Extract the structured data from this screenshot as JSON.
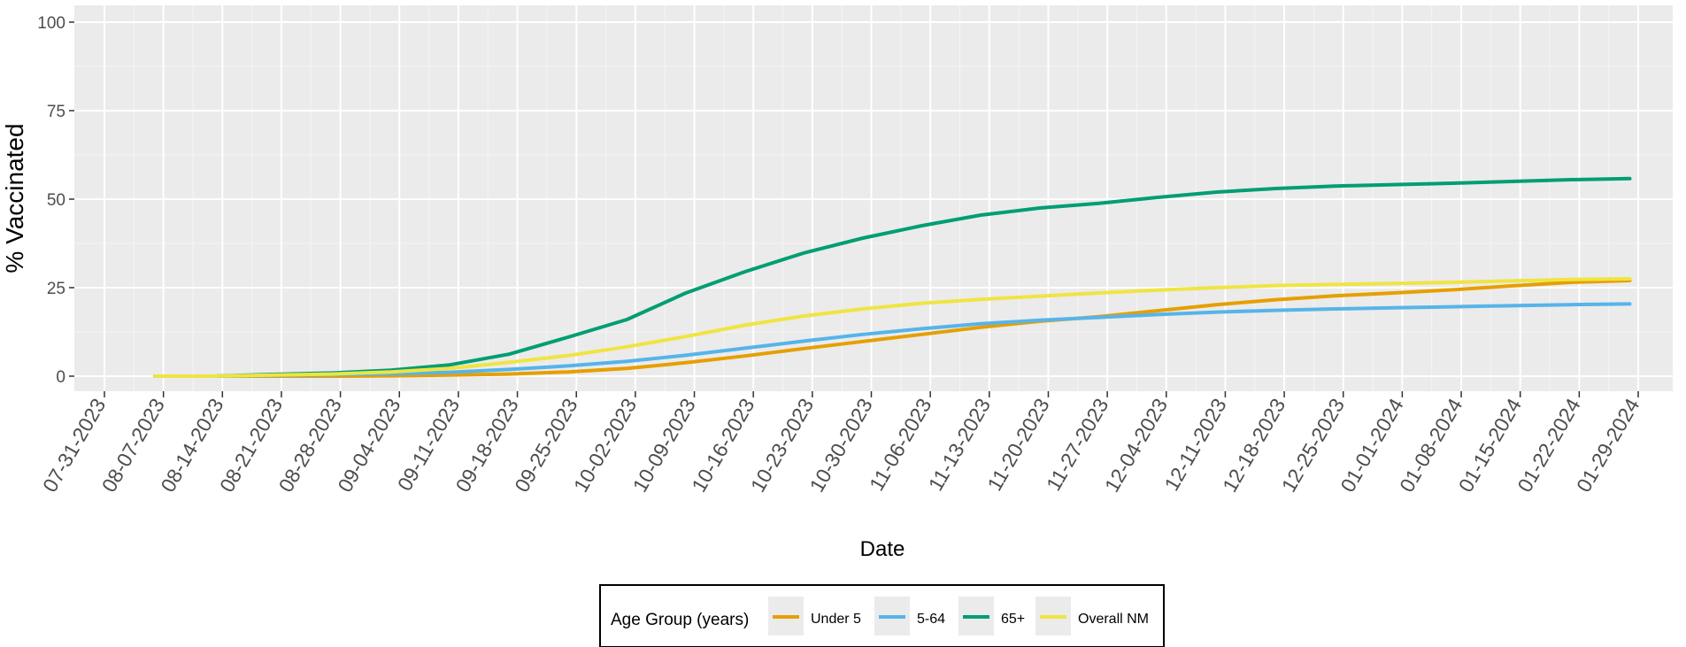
{
  "chart_data": {
    "type": "line",
    "title": "",
    "xlabel": "Date",
    "ylabel": "% Vaccinated",
    "ylim": [
      0,
      100
    ],
    "yticks": [
      0,
      25,
      50,
      75,
      100
    ],
    "xlim": [
      "2023-07-31",
      "2024-02-01"
    ],
    "x_tick_dates": [
      "2023-07-31",
      "2023-08-07",
      "2023-08-14",
      "2023-08-21",
      "2023-08-28",
      "2023-09-04",
      "2023-09-11",
      "2023-09-18",
      "2023-09-25",
      "2023-10-02",
      "2023-10-09",
      "2023-10-16",
      "2023-10-23",
      "2023-10-30",
      "2023-11-06",
      "2023-11-13",
      "2023-11-20",
      "2023-11-27",
      "2023-12-04",
      "2023-12-11",
      "2023-12-18",
      "2023-12-25",
      "2024-01-01",
      "2024-01-08",
      "2024-01-15",
      "2024-01-22",
      "2024-01-29"
    ],
    "x_tick_labels": [
      "07-31-2023",
      "08-07-2023",
      "08-14-2023",
      "08-21-2023",
      "08-28-2023",
      "09-04-2023",
      "09-11-2023",
      "09-18-2023",
      "09-25-2023",
      "10-02-2023",
      "10-09-2023",
      "10-16-2023",
      "10-23-2023",
      "10-30-2023",
      "11-06-2023",
      "11-13-2023",
      "11-20-2023",
      "11-27-2023",
      "12-04-2023",
      "12-11-2023",
      "12-18-2023",
      "12-25-2023",
      "01-01-2024",
      "01-08-2024",
      "01-15-2024",
      "01-22-2024",
      "01-29-2024"
    ],
    "x": [
      "2023-08-06",
      "2023-08-13",
      "2023-08-20",
      "2023-08-27",
      "2023-09-03",
      "2023-09-10",
      "2023-09-17",
      "2023-09-24",
      "2023-10-01",
      "2023-10-08",
      "2023-10-15",
      "2023-10-22",
      "2023-10-29",
      "2023-11-05",
      "2023-11-12",
      "2023-11-19",
      "2023-11-26",
      "2023-12-03",
      "2023-12-10",
      "2023-12-17",
      "2023-12-24",
      "2023-12-31",
      "2024-01-07",
      "2024-01-14",
      "2024-01-21",
      "2024-01-28"
    ],
    "series": [
      {
        "name": "Under 5",
        "color": "#E69F00",
        "values": [
          0,
          0,
          0,
          0,
          0.1,
          0.3,
          0.6,
          1.2,
          2.2,
          3.8,
          5.7,
          7.8,
          9.8,
          11.8,
          13.8,
          15.5,
          16.8,
          18.5,
          20.2,
          21.6,
          22.7,
          23.5,
          24.4,
          25.5,
          26.5,
          27.0
        ]
      },
      {
        "name": "5-64",
        "color": "#56B4E9",
        "values": [
          0,
          0,
          0.2,
          0.4,
          0.7,
          1.1,
          1.9,
          2.9,
          4.2,
          5.9,
          7.9,
          9.9,
          11.8,
          13.4,
          14.8,
          15.8,
          16.6,
          17.4,
          18.1,
          18.6,
          19.0,
          19.3,
          19.6,
          19.9,
          20.2,
          20.4
        ]
      },
      {
        "name": "65+",
        "color": "#009E73",
        "values": [
          0,
          0,
          0.5,
          0.9,
          1.7,
          3.2,
          6.2,
          11.0,
          16.0,
          23.5,
          29.5,
          34.8,
          39.0,
          42.5,
          45.5,
          47.5,
          48.8,
          50.5,
          52.0,
          53.0,
          53.7,
          54.1,
          54.5,
          55.0,
          55.5,
          55.8
        ]
      },
      {
        "name": "Overall NM",
        "color": "#F0E442",
        "values": [
          0,
          0,
          0.3,
          0.6,
          1.2,
          2.2,
          3.9,
          5.8,
          8.3,
          11.2,
          14.4,
          17.0,
          19.0,
          20.6,
          21.7,
          22.6,
          23.5,
          24.3,
          25.0,
          25.6,
          25.9,
          26.2,
          26.5,
          26.9,
          27.3,
          27.5
        ]
      }
    ],
    "grid": true,
    "legend": {
      "title": "Age Group (years)",
      "position": "bottom"
    }
  }
}
